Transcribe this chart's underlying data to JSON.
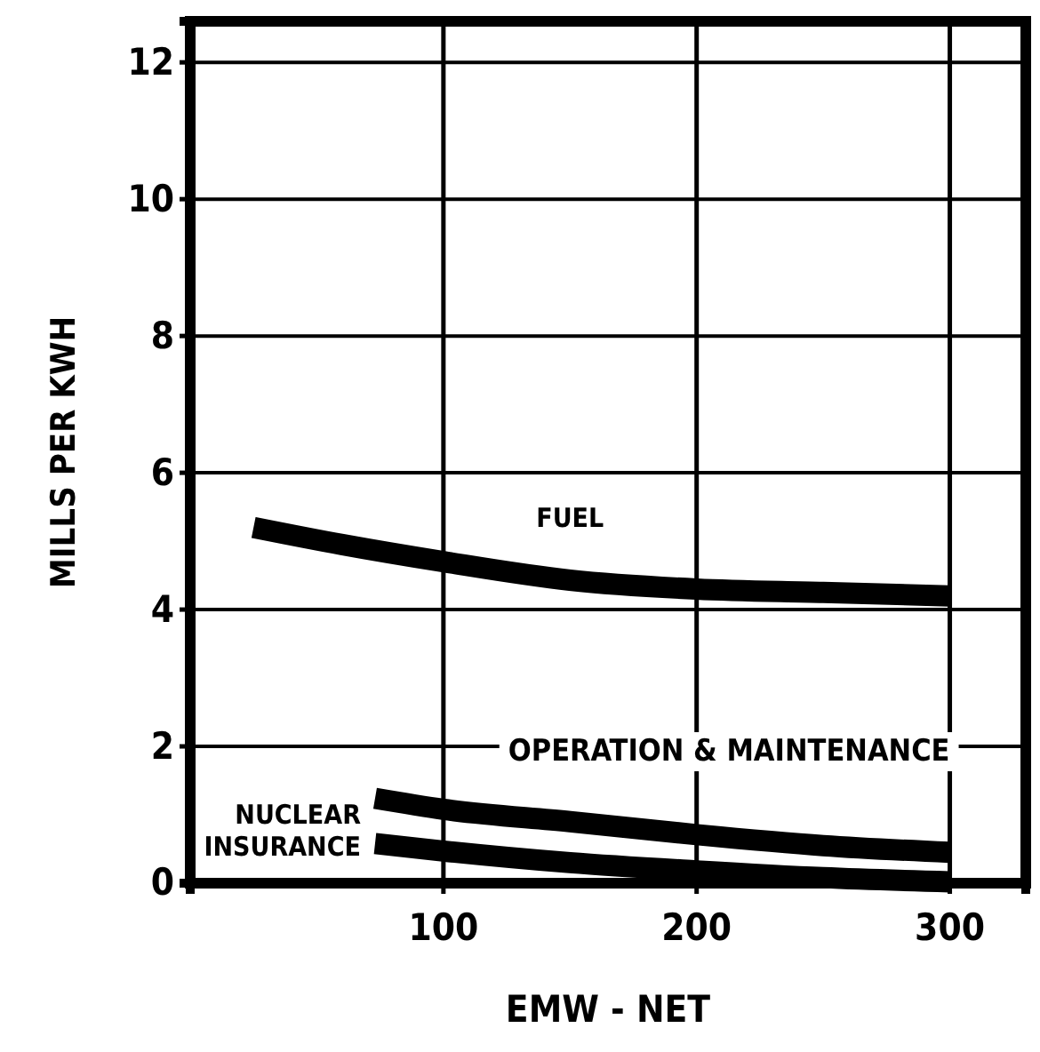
{
  "chart_data": {
    "type": "line",
    "xlabel": "EMW - NET",
    "ylabel": "MILLS PER KWH",
    "xlim": [
      0,
      330
    ],
    "ylim": [
      0,
      12.6
    ],
    "xticks": [
      100,
      200,
      300
    ],
    "yticks": [
      0,
      2,
      4,
      6,
      8,
      10,
      12
    ],
    "grid": true,
    "legend": false,
    "marker": "none",
    "line_style": "solid",
    "series": [
      {
        "name": "FUEL",
        "color": "#000000",
        "x": [
          25,
          60,
          100,
          150,
          200,
          250,
          300
        ],
        "values": [
          5.2,
          4.95,
          4.7,
          4.43,
          4.3,
          4.25,
          4.2
        ]
      },
      {
        "name": "OPERATION & MAINTENANCE",
        "color": "#000000",
        "x": [
          73,
          100,
          150,
          200,
          250,
          300
        ],
        "values": [
          1.24,
          1.08,
          0.9,
          0.71,
          0.55,
          0.45
        ]
      },
      {
        "name": "NUCLEAR INSURANCE",
        "color": "#000000",
        "x": [
          73,
          100,
          150,
          200,
          250,
          300
        ],
        "values": [
          0.58,
          0.47,
          0.3,
          0.18,
          0.08,
          0.02
        ]
      }
    ]
  }
}
